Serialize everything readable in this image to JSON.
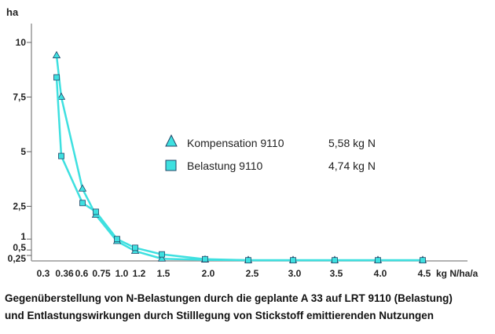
{
  "chart_data": {
    "type": "line",
    "ylabel": "ha",
    "xlabel": "kg N/ha/a",
    "y_ticks": [
      "10",
      "7,5",
      "5",
      "2,5",
      "1",
      "0,5",
      "0,25"
    ],
    "y_tick_values": [
      10,
      7.5,
      5,
      2.5,
      1,
      0.5,
      0.25
    ],
    "x_ticks": [
      "0.3",
      "0.36",
      "0.6",
      "0.75",
      "1.0",
      "1.2",
      "1.5",
      "2.0",
      "2.5",
      "3.0",
      "3.5",
      "4.0",
      "4.5"
    ],
    "x": [
      0.3,
      0.36,
      0.6,
      0.75,
      1.0,
      1.2,
      1.5,
      2.0,
      2.5,
      3.0,
      3.5,
      4.0,
      4.5
    ],
    "ylim": [
      0,
      10.5
    ],
    "series": [
      {
        "name": "Kompensation 9110",
        "value_label": "5,58 kg N",
        "marker": "triangle",
        "values": [
          9.4,
          7.5,
          3.3,
          2.1,
          0.9,
          0.45,
          0.1,
          0.05,
          0.03,
          0.03,
          0.03,
          0.03,
          0.03
        ]
      },
      {
        "name": "Belastung 9110",
        "value_label": "4,74 kg N",
        "marker": "square",
        "values": [
          8.4,
          4.8,
          2.65,
          2.25,
          1.0,
          0.6,
          0.3,
          0.08,
          0.03,
          0.03,
          0.03,
          0.03,
          0.03
        ]
      }
    ],
    "color": "#3ee0e0",
    "caption": [
      "Gegenüberstellung von N-Belastungen durch die geplante A 33 auf LRT 9110 (Belastung)",
      "und Entlastungswirkungen durch Stilllegung  von Stickstoff emittierenden Nutzungen"
    ]
  }
}
